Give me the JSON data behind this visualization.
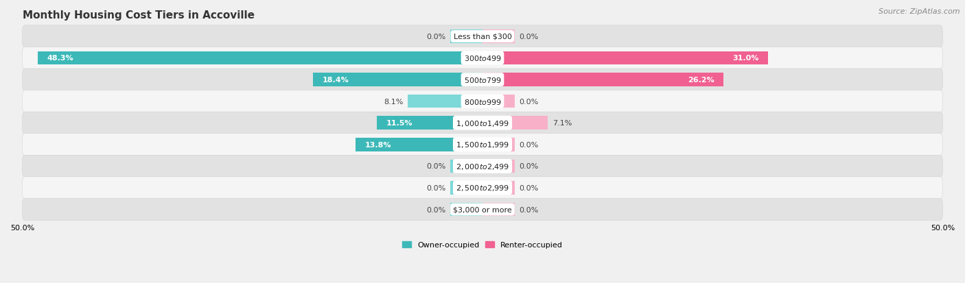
{
  "title": "Monthly Housing Cost Tiers in Accoville",
  "source_text": "Source: ZipAtlas.com",
  "categories": [
    "Less than $300",
    "$300 to $499",
    "$500 to $799",
    "$800 to $999",
    "$1,000 to $1,499",
    "$1,500 to $1,999",
    "$2,000 to $2,499",
    "$2,500 to $2,999",
    "$3,000 or more"
  ],
  "owner_values": [
    0.0,
    48.3,
    18.4,
    8.1,
    11.5,
    13.8,
    0.0,
    0.0,
    0.0
  ],
  "renter_values": [
    0.0,
    31.0,
    26.2,
    0.0,
    7.1,
    0.0,
    0.0,
    0.0,
    0.0
  ],
  "owner_color_dark": "#3db8b8",
  "owner_color_light": "#7dd8d8",
  "renter_color_dark": "#f06090",
  "renter_color_light": "#f8b0c8",
  "background_color": "#f0f0f0",
  "row_color_dark": "#e2e2e2",
  "row_color_light": "#f5f5f5",
  "stub_size": 3.5,
  "xlim": 50.0,
  "title_fontsize": 11,
  "source_fontsize": 8,
  "label_fontsize": 8,
  "cat_fontsize": 8,
  "bar_height": 0.62,
  "legend_label_owner": "Owner-occupied",
  "legend_label_renter": "Renter-occupied"
}
